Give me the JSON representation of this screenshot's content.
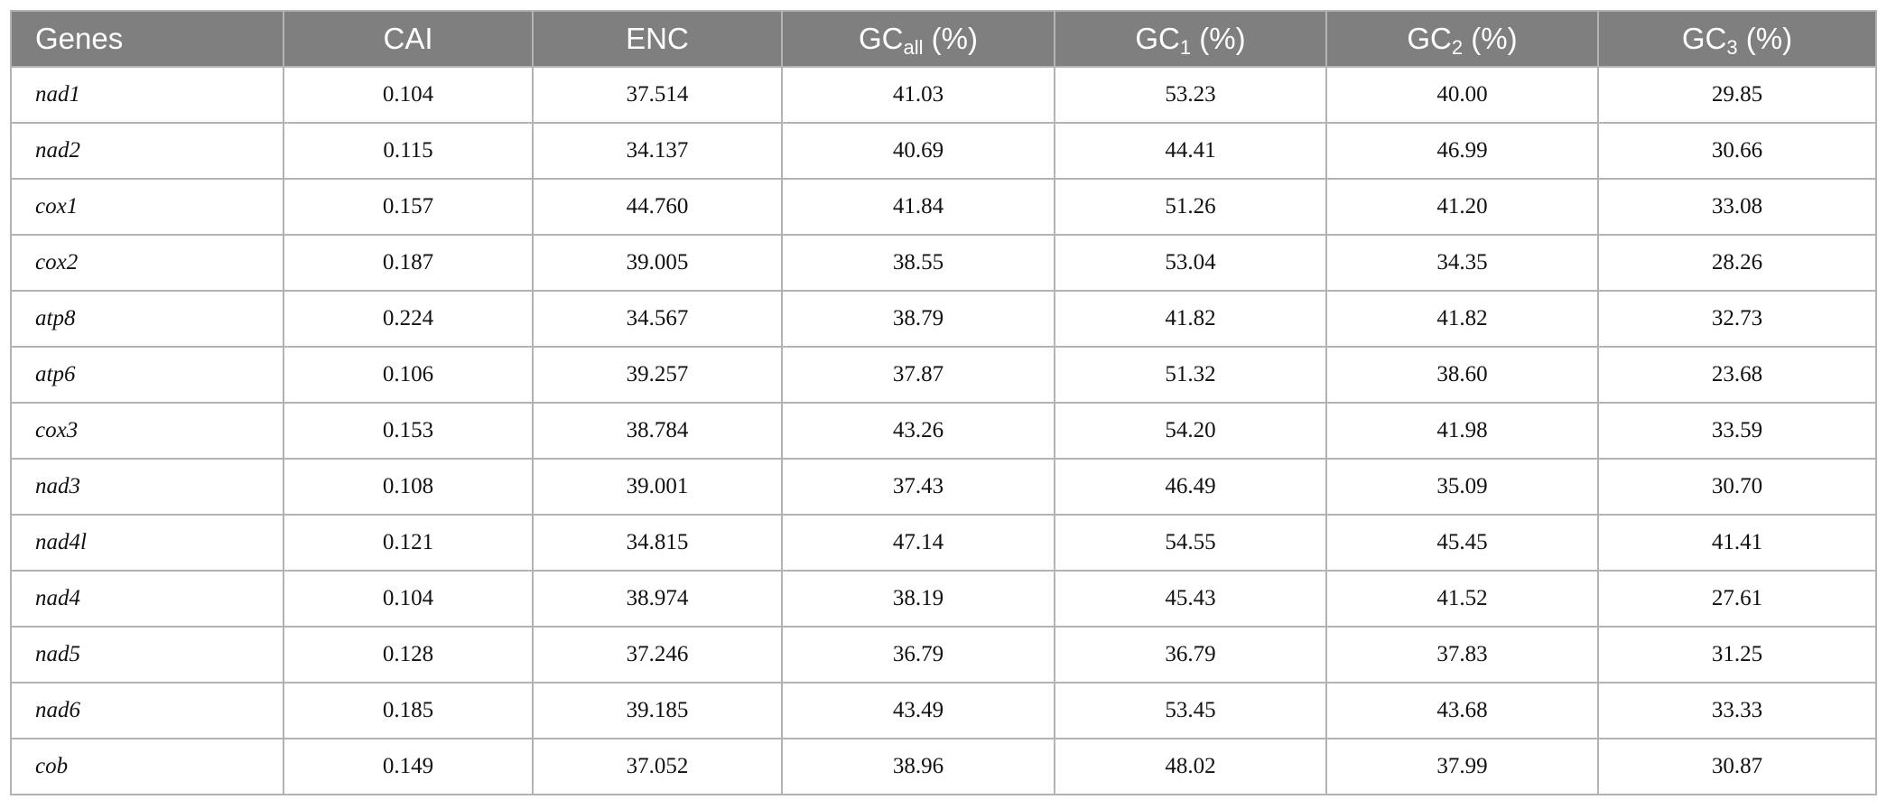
{
  "table": {
    "headers": [
      {
        "main": "Genes"
      },
      {
        "main": "CAI"
      },
      {
        "main": "ENC"
      },
      {
        "main": "GC",
        "sub": "all",
        "rest": " (%)"
      },
      {
        "main": "GC",
        "sub": "1",
        "rest": " (%)"
      },
      {
        "main": "GC",
        "sub": "2",
        "rest": " (%)"
      },
      {
        "main": "GC",
        "sub": "3",
        "rest": " (%)"
      }
    ],
    "rows": [
      [
        "nad1",
        "0.104",
        "37.514",
        "41.03",
        "53.23",
        "40.00",
        "29.85"
      ],
      [
        "nad2",
        "0.115",
        "34.137",
        "40.69",
        "44.41",
        "46.99",
        "30.66"
      ],
      [
        "cox1",
        "0.157",
        "44.760",
        "41.84",
        "51.26",
        "41.20",
        "33.08"
      ],
      [
        "cox2",
        "0.187",
        "39.005",
        "38.55",
        "53.04",
        "34.35",
        "28.26"
      ],
      [
        "atp8",
        "0.224",
        "34.567",
        "38.79",
        "41.82",
        "41.82",
        "32.73"
      ],
      [
        "atp6",
        "0.106",
        "39.257",
        "37.87",
        "51.32",
        "38.60",
        "23.68"
      ],
      [
        "cox3",
        "0.153",
        "38.784",
        "43.26",
        "54.20",
        "41.98",
        "33.59"
      ],
      [
        "nad3",
        "0.108",
        "39.001",
        "37.43",
        "46.49",
        "35.09",
        "30.70"
      ],
      [
        "nad4l",
        "0.121",
        "34.815",
        "47.14",
        "54.55",
        "45.45",
        "41.41"
      ],
      [
        "nad4",
        "0.104",
        "38.974",
        "38.19",
        "45.43",
        "41.52",
        "27.61"
      ],
      [
        "nad5",
        "0.128",
        "37.246",
        "36.79",
        "36.79",
        "37.83",
        "31.25"
      ],
      [
        "nad6",
        "0.185",
        "39.185",
        "43.49",
        "53.45",
        "43.68",
        "33.33"
      ],
      [
        "cob",
        "0.149",
        "37.052",
        "38.96",
        "48.02",
        "37.99",
        "30.87"
      ]
    ]
  }
}
